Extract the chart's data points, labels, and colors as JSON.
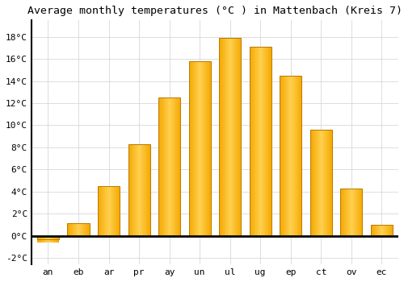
{
  "title": "Average monthly temperatures (°C ) in Mattenbach (Kreis 7)",
  "months": [
    "an",
    "eb",
    "ar",
    "pr",
    "ay",
    "un",
    "ul",
    "ug",
    "ep",
    "ct",
    "ov",
    "ec"
  ],
  "values": [
    -0.3,
    1.1,
    4.5,
    8.3,
    12.5,
    15.8,
    17.9,
    17.1,
    14.5,
    9.6,
    4.3,
    1.0
  ],
  "bar_color_left": "#F5A800",
  "bar_color_mid": "#FFD050",
  "bar_color_right": "#E08000",
  "bar_edge_color": "#B87800",
  "background_color": "#ffffff",
  "grid_color": "#d8d8d8",
  "ylim": [
    -2.6,
    19.5
  ],
  "yticks": [
    -2,
    0,
    2,
    4,
    6,
    8,
    10,
    12,
    14,
    16,
    18
  ],
  "ylabel_suffix": "°C",
  "title_fontsize": 9.5,
  "tick_fontsize": 8,
  "font_family": "monospace"
}
